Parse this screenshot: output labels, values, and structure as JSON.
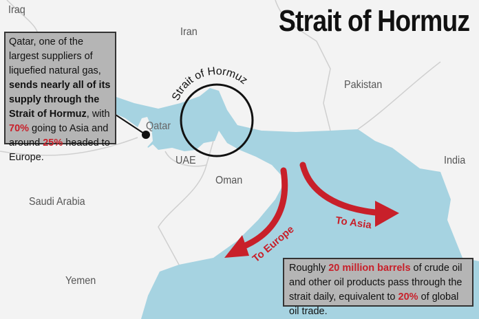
{
  "title": "Strait of Hormuz",
  "map_labels": {
    "iraq": "Iraq",
    "iran": "Iran",
    "pakistan": "Pakistan",
    "qatar": "Qatar",
    "uae": "UAE",
    "oman": "Oman",
    "saudi_arabia": "Saudi Arabia",
    "yemen": "Yemen",
    "india": "India",
    "strait": "Strait of Hormuz"
  },
  "arrows": {
    "europe": "To Europe",
    "asia": "To Asia"
  },
  "qatar_box": {
    "t1": "Qatar, one of the largest suppliers of liquefied natural gas, ",
    "t2": "sends nearly all of its supply through the Strait of Hormuz",
    "t3": ", with ",
    "t4": "70%",
    "t5": " going to Asia and around ",
    "t6": "25%",
    "t7": " headed to Europe."
  },
  "oil_box": {
    "t1": "Roughly ",
    "t2": "20 million barrels",
    "t3": " of crude oil and other oil products pass through the strait daily, equivalent to ",
    "t4": "20%",
    "t5": " of global oil trade."
  },
  "colors": {
    "water": "#a6d3e1",
    "land": "#f3f3f3",
    "arrow": "#c8202a",
    "box": "#b5b5b5"
  }
}
